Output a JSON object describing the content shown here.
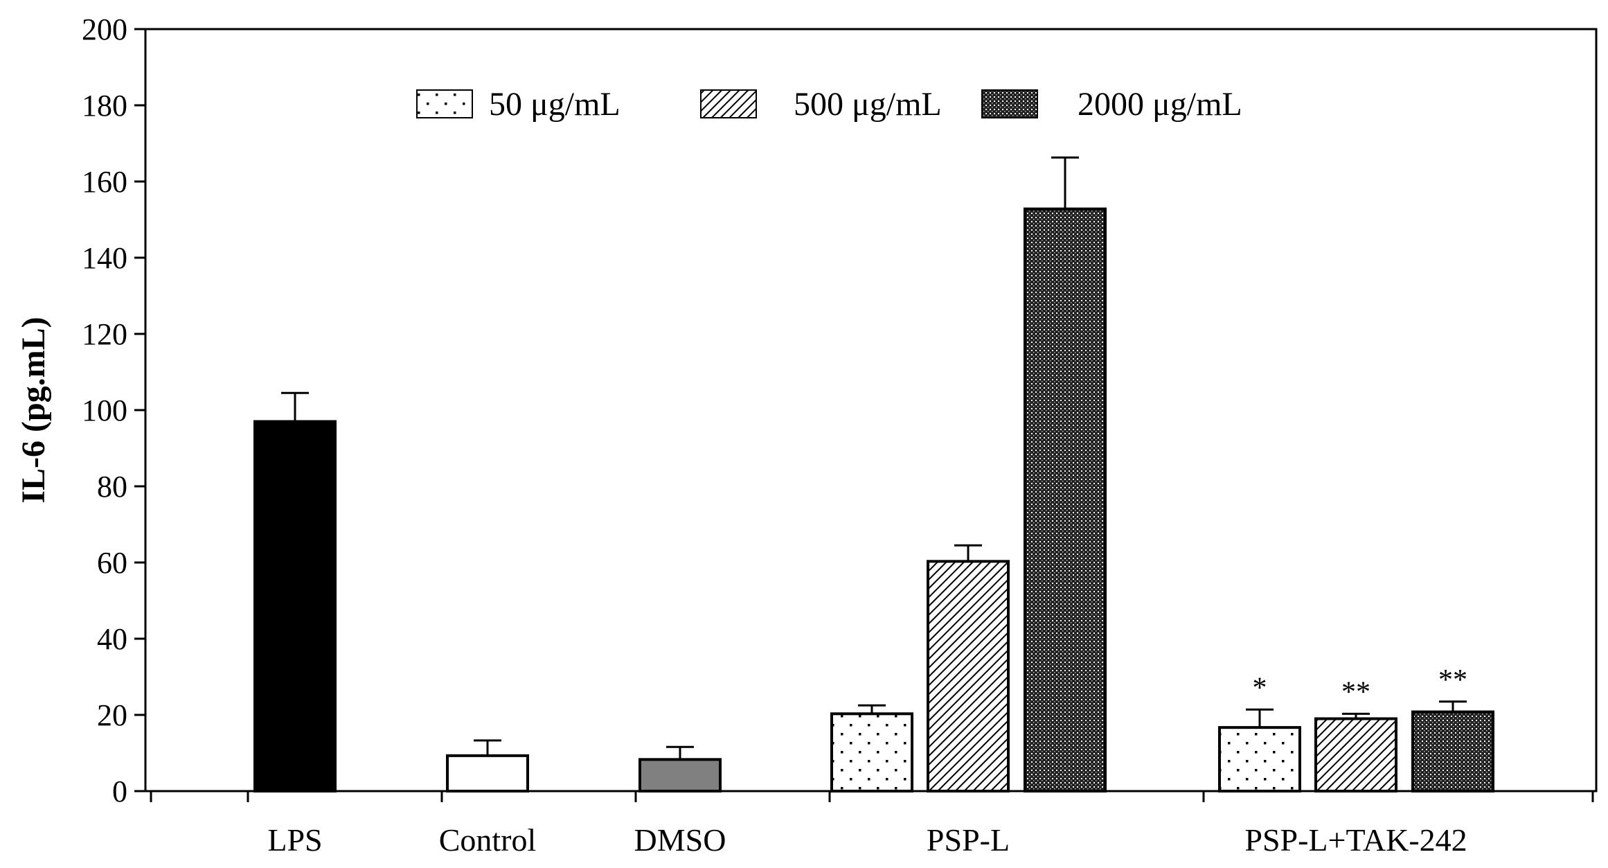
{
  "chart_data": {
    "type": "bar",
    "ylabel": "IL-6 (pg.mL)",
    "xlabel": "",
    "ylim": [
      0,
      200
    ],
    "yticks": [
      0,
      20,
      40,
      60,
      80,
      100,
      120,
      140,
      160,
      180,
      200
    ],
    "grid": false,
    "legend_position": "top-center",
    "legend": [
      {
        "label": "50 μg/mL",
        "pattern": "dots"
      },
      {
        "label": "500 μg/mL",
        "pattern": "hatch"
      },
      {
        "label": "2000 μg/mL",
        "pattern": "dense"
      }
    ],
    "categories": [
      "LPS",
      "Control",
      "DMSO",
      "PSP-L",
      "PSP-L+TAK-242"
    ],
    "bars": [
      {
        "category": "LPS",
        "value": 97,
        "error": 7.5,
        "fill": "black",
        "annotation": ""
      },
      {
        "category": "Control",
        "value": 9.3,
        "error": 4,
        "fill": "white",
        "annotation": ""
      },
      {
        "category": "DMSO",
        "value": 8.3,
        "error": 3.3,
        "fill": "gray",
        "annotation": ""
      },
      {
        "category": "PSP-L",
        "value": 20.3,
        "error": 2.2,
        "fill": "dots",
        "annotation": ""
      },
      {
        "category": "PSP-L",
        "value": 60.3,
        "error": 4.2,
        "fill": "hatch",
        "annotation": ""
      },
      {
        "category": "PSP-L",
        "value": 152.8,
        "error": 13.5,
        "fill": "dense",
        "annotation": ""
      },
      {
        "category": "PSP-L+TAK-242",
        "value": 16.7,
        "error": 4.7,
        "fill": "dots",
        "annotation": "*"
      },
      {
        "category": "PSP-L+TAK-242",
        "value": 19.0,
        "error": 1.3,
        "fill": "hatch",
        "annotation": "**"
      },
      {
        "category": "PSP-L+TAK-242",
        "value": 20.8,
        "error": 2.7,
        "fill": "dense",
        "annotation": "**"
      }
    ]
  }
}
